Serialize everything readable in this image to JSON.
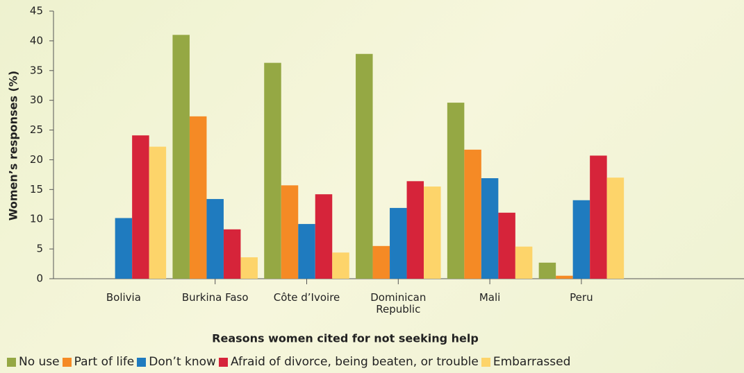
{
  "chart_data": {
    "type": "bar",
    "categories": [
      "Bolivia",
      "Burkina Faso",
      "Côte d’Ivoire",
      "Dominican Republic",
      "Mali",
      "Peru"
    ],
    "series": [
      {
        "name": "No use",
        "color": "#95a844",
        "values": [
          null,
          41,
          36.3,
          37.8,
          29.6,
          2.7
        ]
      },
      {
        "name": "Part of life",
        "color": "#f58a25",
        "values": [
          null,
          27.3,
          15.7,
          5.5,
          21.7,
          0.5
        ]
      },
      {
        "name": "Don’t know",
        "color": "#1f7bbf",
        "values": [
          10.2,
          13.4,
          9.2,
          11.9,
          16.9,
          13.2
        ]
      },
      {
        "name": "Afraid of divorce, being beaten, or trouble",
        "color": "#d6243a",
        "values": [
          24.1,
          8.3,
          14.2,
          16.4,
          11.1,
          20.7
        ]
      },
      {
        "name": "Embarrassed",
        "color": "#fdd46a",
        "values": [
          22.2,
          3.6,
          4.4,
          15.5,
          5.4,
          17.0
        ]
      }
    ],
    "xlabel": "Reasons women cited for not seeking help",
    "ylabel": "Women’s responses (%)",
    "ylim": [
      0,
      45
    ],
    "yticks": [
      0,
      5,
      10,
      15,
      20,
      25,
      30,
      35,
      40,
      45
    ]
  }
}
